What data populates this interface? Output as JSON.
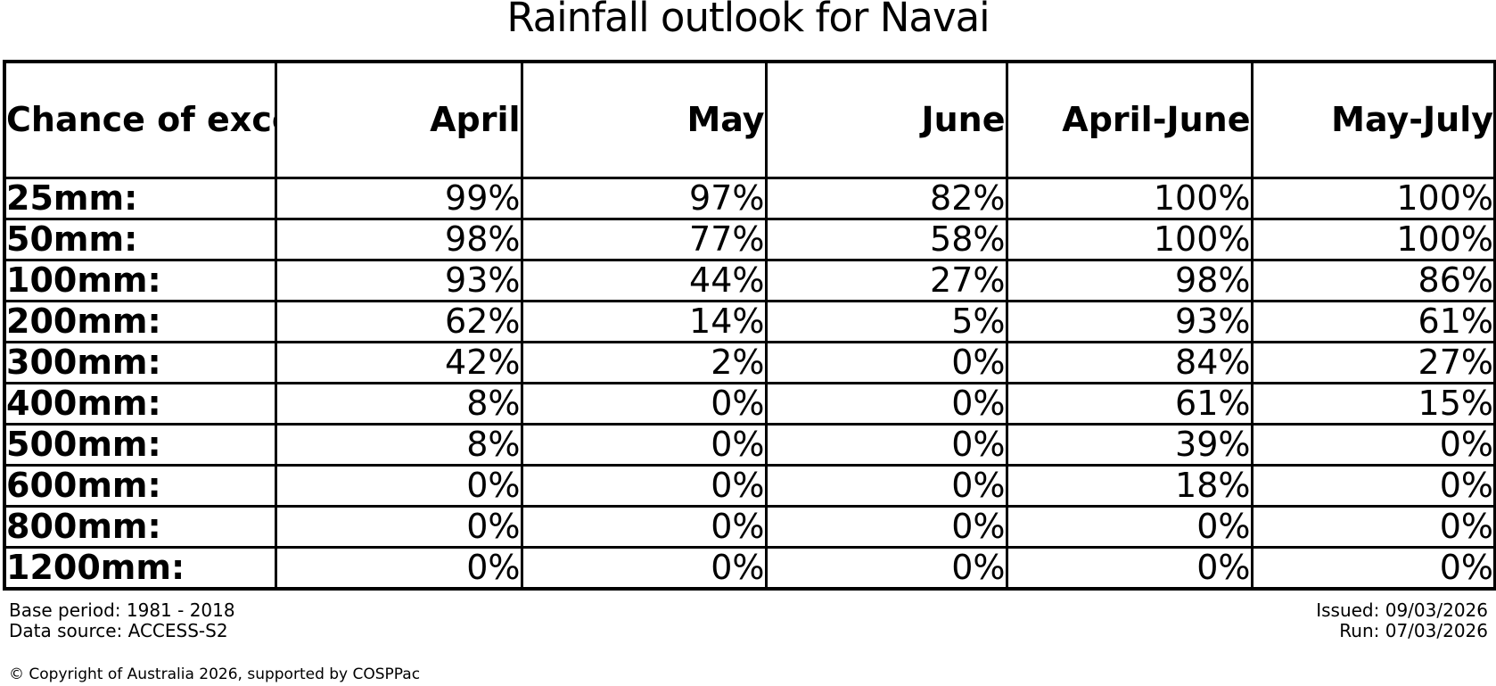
{
  "title": "Rainfall outlook for Navai",
  "table": {
    "corner_label": "Chance of\nexceeding\na threshold:",
    "columns": [
      "April",
      "May",
      "June",
      "April-June",
      "May-July"
    ],
    "rows": [
      {
        "label": "25mm:",
        "values": [
          "99%",
          "97%",
          "82%",
          "100%",
          "100%"
        ]
      },
      {
        "label": "50mm:",
        "values": [
          "98%",
          "77%",
          "58%",
          "100%",
          "100%"
        ]
      },
      {
        "label": "100mm:",
        "values": [
          "93%",
          "44%",
          "27%",
          "98%",
          "86%"
        ]
      },
      {
        "label": "200mm:",
        "values": [
          "62%",
          "14%",
          "5%",
          "93%",
          "61%"
        ]
      },
      {
        "label": "300mm:",
        "values": [
          "42%",
          "2%",
          "0%",
          "84%",
          "27%"
        ]
      },
      {
        "label": "400mm:",
        "values": [
          "8%",
          "0%",
          "0%",
          "61%",
          "15%"
        ]
      },
      {
        "label": "500mm:",
        "values": [
          "8%",
          "0%",
          "0%",
          "39%",
          "0%"
        ]
      },
      {
        "label": "600mm:",
        "values": [
          "0%",
          "0%",
          "0%",
          "18%",
          "0%"
        ]
      },
      {
        "label": "800mm:",
        "values": [
          "0%",
          "0%",
          "0%",
          "0%",
          "0%"
        ]
      },
      {
        "label": "1200mm:",
        "values": [
          "0%",
          "0%",
          "0%",
          "0%",
          "0%"
        ]
      }
    ]
  },
  "footer": {
    "base_period": "Base period: 1981 - 2018",
    "data_source": "Data source: ACCESS-S2",
    "issued": "Issued: 09/03/2026",
    "run": "Run: 07/03/2026",
    "copyright": "© Copyright of Australia 2026, supported by COSPPac"
  },
  "colors": {
    "text": "#000000",
    "background": "#ffffff",
    "border": "#000000"
  },
  "chart_data": {
    "type": "table",
    "title": "Rainfall outlook for Navai",
    "row_header": "Chance of exceeding a threshold:",
    "categories": [
      "April",
      "May",
      "June",
      "April-June",
      "May-July"
    ],
    "thresholds_mm": [
      25,
      50,
      100,
      200,
      300,
      400,
      500,
      600,
      800,
      1200
    ],
    "unit": "%",
    "series": [
      {
        "name": "April",
        "values": [
          99,
          98,
          93,
          62,
          42,
          8,
          8,
          0,
          0,
          0
        ]
      },
      {
        "name": "May",
        "values": [
          97,
          77,
          44,
          14,
          2,
          0,
          0,
          0,
          0,
          0
        ]
      },
      {
        "name": "June",
        "values": [
          82,
          58,
          27,
          5,
          0,
          0,
          0,
          0,
          0,
          0
        ]
      },
      {
        "name": "April-June",
        "values": [
          100,
          100,
          98,
          93,
          84,
          61,
          39,
          18,
          0,
          0
        ]
      },
      {
        "name": "May-July",
        "values": [
          100,
          100,
          86,
          61,
          27,
          15,
          0,
          0,
          0,
          0
        ]
      }
    ],
    "notes": {
      "base_period": "1981 - 2018",
      "data_source": "ACCESS-S2",
      "issued": "09/03/2026",
      "run": "07/03/2026"
    }
  }
}
